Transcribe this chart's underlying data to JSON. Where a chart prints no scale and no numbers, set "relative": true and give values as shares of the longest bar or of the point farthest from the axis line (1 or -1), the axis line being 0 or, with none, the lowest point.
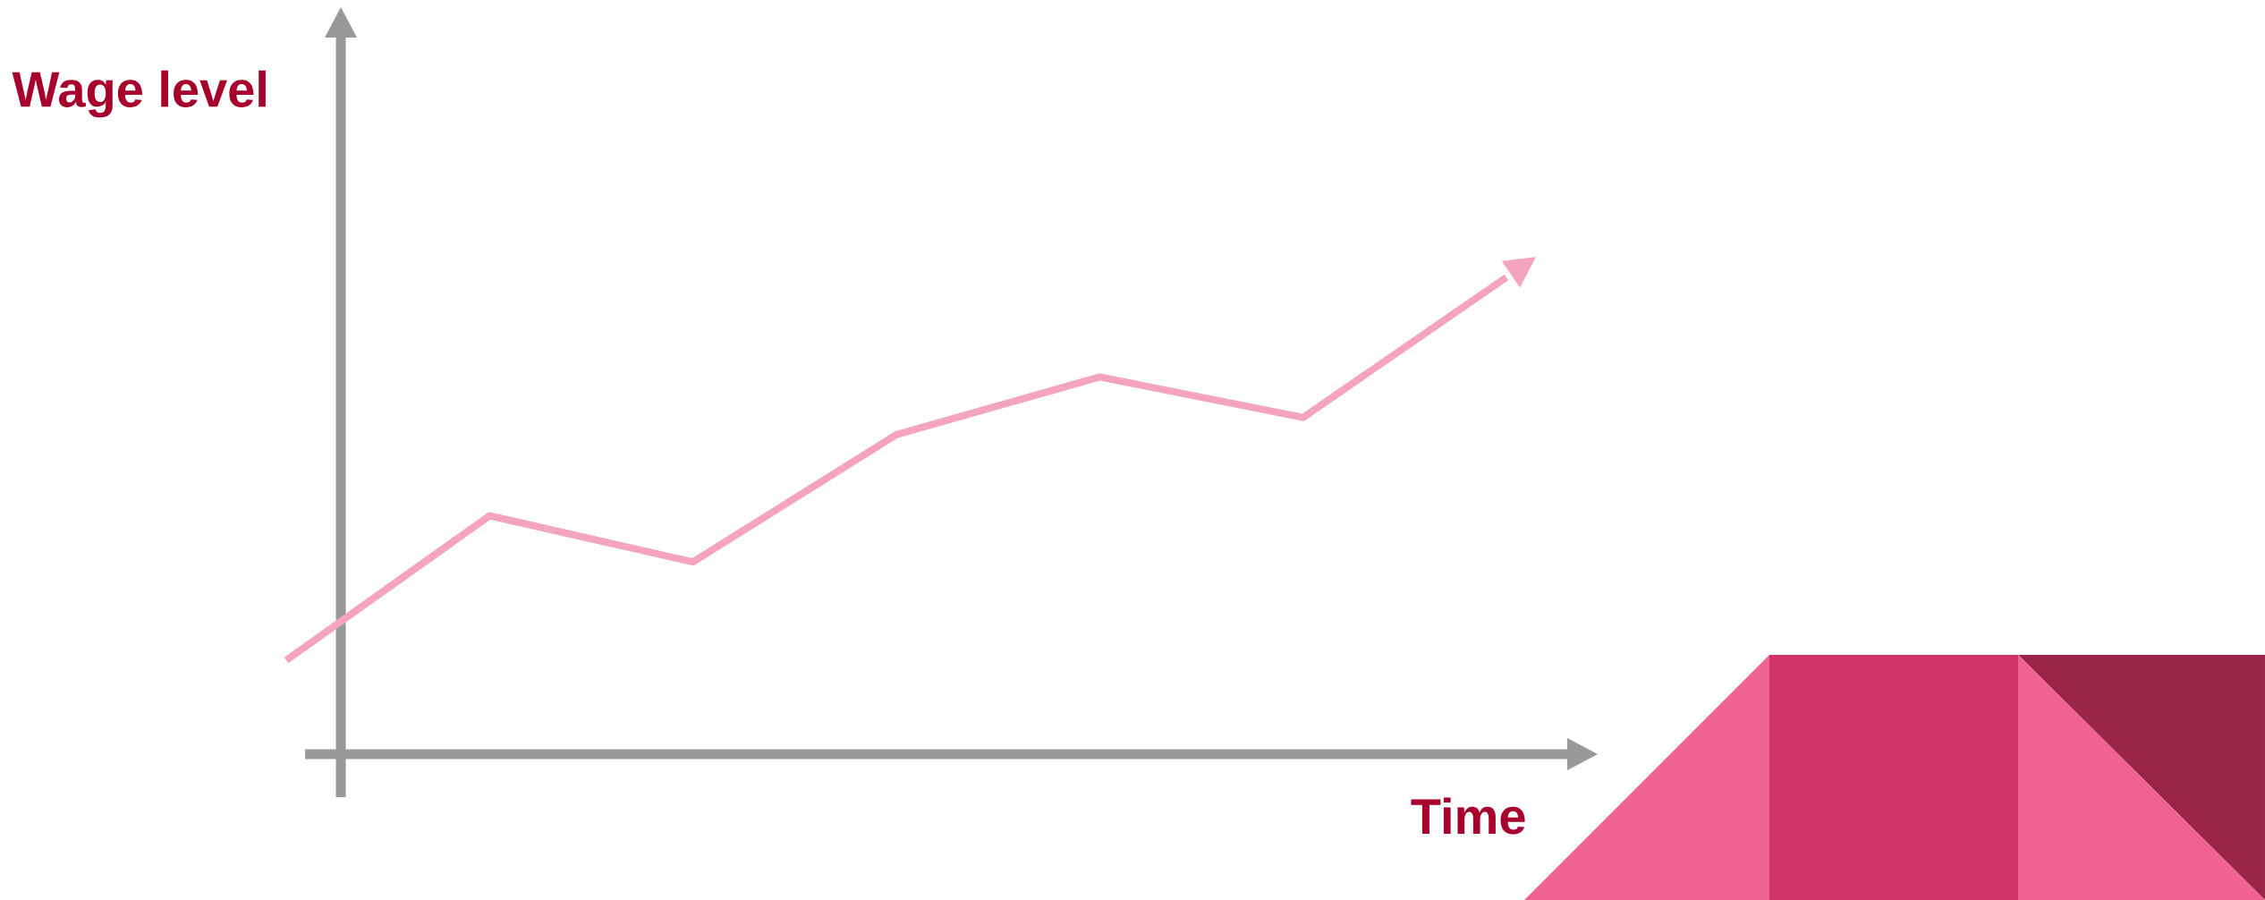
{
  "chart_data": {
    "type": "line",
    "relative": true,
    "xlabel": "Time",
    "ylabel": "Wage level",
    "categories": [
      null,
      null,
      null,
      null,
      null,
      null,
      null
    ],
    "series": [
      {
        "color": "#f4a3c0",
        "values": [
          0.197,
          0.5,
          0.403,
          0.67,
          0.791,
          0.706,
          1
        ]
      }
    ]
  }
}
